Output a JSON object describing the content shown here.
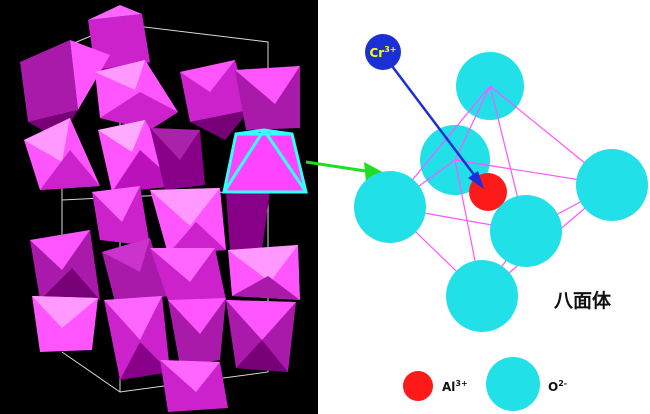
{
  "figure": {
    "ion_cr": {
      "base": "Cr",
      "sup": "3+"
    },
    "ion_al": {
      "base": "Al",
      "sup": "3+"
    },
    "ion_o": {
      "base": "O",
      "sup": "2-"
    },
    "octahedron_label": "八面体"
  },
  "colors": {
    "background_left": "#000000",
    "polyhedron_light": "#ff55ff",
    "polyhedron_mid": "#cc22cc",
    "polyhedron_dark": "#880088",
    "highlight": "#33ffff",
    "arrow_green": "#22dd22",
    "oxygen": "#22e0e8",
    "aluminum": "#ff1a1a",
    "chromium": "#1a2fd6",
    "bond": "#ff55ff",
    "label_yellow": "#ffff00"
  }
}
